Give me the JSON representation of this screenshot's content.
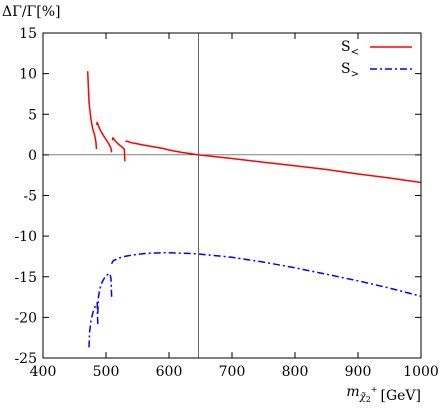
{
  "chart_data": {
    "type": "line",
    "ylabel": "ΔΓ/Γ[%]",
    "xlabel": "m_χ̃₂⁺ [GeV]",
    "xlabel_parts": {
      "base": "m",
      "sub": "χ̃",
      "subsub": "2",
      "sup": "+",
      "unit": "[GeV]"
    },
    "xlim": [
      400,
      1000
    ],
    "ylim": [
      -25,
      15
    ],
    "x_ticks": [
      400,
      500,
      600,
      700,
      800,
      900,
      1000
    ],
    "y_ticks": [
      15,
      10,
      5,
      0,
      -5,
      -10,
      -15,
      -20,
      -25
    ],
    "reference_lines": {
      "y": 0,
      "x": 647
    },
    "grid": false,
    "legend_position": "top-right",
    "series": [
      {
        "name": "S<",
        "name_parts": {
          "base": "S",
          "sub": "<"
        },
        "color": "#ff0000",
        "dash": "solid",
        "segments": [
          {
            "x": [
              471,
              473,
              476,
              479,
              482,
              484,
              485
            ],
            "y": [
              10.3,
              6.5,
              4.4,
              3.2,
              2.4,
              1.6,
              0.7
            ]
          },
          {
            "x": [
              485,
              486,
              490,
              495,
              500,
              505,
              508,
              509
            ],
            "y": [
              3.7,
              4.0,
              3.2,
              2.5,
              1.9,
              1.3,
              0.8,
              0.3
            ]
          },
          {
            "x": [
              510,
              511,
              515,
              520,
              525,
              529,
              530
            ],
            "y": [
              1.8,
              2.1,
              1.7,
              1.3,
              1.0,
              0.7,
              -0.8
            ]
          },
          {
            "x": [
              531,
              533,
              540,
              550,
              560,
              575,
              590,
              600,
              620,
              647,
              700,
              750,
              800,
              850,
              900,
              950,
              1000
            ],
            "y": [
              1.6,
              1.7,
              1.5,
              1.35,
              1.2,
              1.0,
              0.8,
              0.6,
              0.3,
              0.0,
              -0.45,
              -0.9,
              -1.35,
              -1.8,
              -2.35,
              -2.85,
              -3.4
            ]
          }
        ]
      },
      {
        "name": "S>",
        "name_parts": {
          "base": "S",
          "sub": ">"
        },
        "color": "#0000ff",
        "dash": "dashdot",
        "segments": [
          {
            "x": [
              473,
              474,
              476,
              478,
              480,
              482,
              484,
              486,
              487
            ],
            "y": [
              -23.7,
              -21.8,
              -20.5,
              -19.8,
              -19.2,
              -18.8,
              -18.5,
              -18.2,
              -21.0
            ]
          },
          {
            "x": [
              487,
              488,
              490,
              492,
              495,
              498,
              500,
              503,
              506,
              508,
              509
            ],
            "y": [
              -19.5,
              -17.5,
              -16.6,
              -16.0,
              -15.5,
              -15.1,
              -14.9,
              -14.7,
              -14.6,
              -15.2,
              -17.7
            ]
          },
          {
            "x": [
              509,
              510,
              512,
              515,
              520,
              530,
              540,
              550,
              560,
              570,
              580,
              590,
              600,
              620,
              640,
              660,
              680,
              700,
              750,
              800,
              850,
              900,
              950,
              1000
            ],
            "y": [
              -13.4,
              -13.2,
              -13.0,
              -12.9,
              -12.7,
              -12.5,
              -12.35,
              -12.25,
              -12.15,
              -12.1,
              -12.08,
              -12.05,
              -12.05,
              -12.1,
              -12.15,
              -12.3,
              -12.45,
              -12.6,
              -13.2,
              -13.9,
              -14.7,
              -15.5,
              -16.4,
              -17.4
            ]
          }
        ]
      }
    ]
  }
}
